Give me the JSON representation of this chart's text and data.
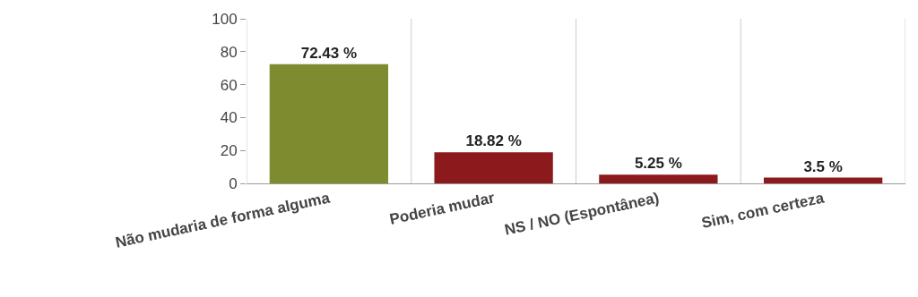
{
  "chart_data": {
    "type": "bar",
    "categories": [
      "Não mudaria de forma alguma",
      "Poderia mudar",
      "NS / NO (Espontânea)",
      "Sim, com certeza"
    ],
    "values": [
      72.43,
      18.82,
      5.25,
      3.5
    ],
    "colors": [
      "#7f8b2f",
      "#8c1a1c",
      "#8c1a1c",
      "#8c1a1c"
    ],
    "value_labels": [
      "72.43 %",
      "18.82 %",
      "5.25 %",
      "3.5 %"
    ],
    "ylim": [
      0,
      100
    ],
    "yticks": [
      0,
      20,
      40,
      60,
      80,
      100
    ],
    "grid": "x"
  }
}
